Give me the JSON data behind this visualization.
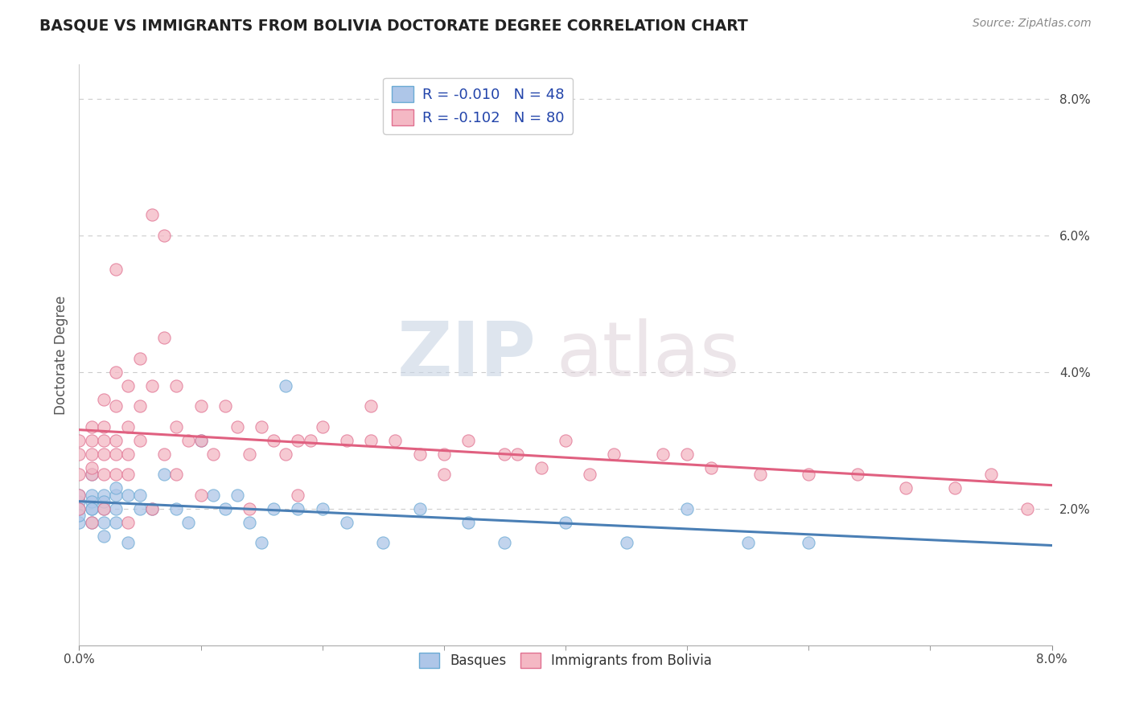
{
  "title": "BASQUE VS IMMIGRANTS FROM BOLIVIA DOCTORATE DEGREE CORRELATION CHART",
  "source": "Source: ZipAtlas.com",
  "ylabel": "Doctorate Degree",
  "legend_basque_R": "R = -0.010",
  "legend_basque_N": "N = 48",
  "legend_bolivia_R": "R = -0.102",
  "legend_bolivia_N": "N = 80",
  "basque_color": "#aec6e8",
  "bolivia_color": "#f4b8c4",
  "basque_edge_color": "#6aaad4",
  "bolivia_edge_color": "#e07090",
  "basque_line_color": "#4a7fb5",
  "bolivia_line_color": "#e06080",
  "legend_text_color": "#2244aa",
  "basque_scatter_x": [
    0.0,
    0.0,
    0.0,
    0.0,
    0.0,
    0.001,
    0.001,
    0.001,
    0.001,
    0.001,
    0.001,
    0.002,
    0.002,
    0.002,
    0.002,
    0.002,
    0.003,
    0.003,
    0.003,
    0.003,
    0.004,
    0.004,
    0.005,
    0.005,
    0.006,
    0.007,
    0.008,
    0.009,
    0.01,
    0.011,
    0.012,
    0.013,
    0.014,
    0.015,
    0.016,
    0.017,
    0.018,
    0.02,
    0.022,
    0.025,
    0.028,
    0.032,
    0.035,
    0.04,
    0.045,
    0.05,
    0.055,
    0.06
  ],
  "basque_scatter_y": [
    0.018,
    0.021,
    0.022,
    0.02,
    0.019,
    0.025,
    0.02,
    0.018,
    0.022,
    0.021,
    0.02,
    0.022,
    0.018,
    0.02,
    0.016,
    0.021,
    0.022,
    0.018,
    0.02,
    0.023,
    0.022,
    0.015,
    0.02,
    0.022,
    0.02,
    0.025,
    0.02,
    0.018,
    0.03,
    0.022,
    0.02,
    0.022,
    0.018,
    0.015,
    0.02,
    0.038,
    0.02,
    0.02,
    0.018,
    0.015,
    0.02,
    0.018,
    0.015,
    0.018,
    0.015,
    0.02,
    0.015,
    0.015
  ],
  "bolivia_scatter_x": [
    0.0,
    0.0,
    0.0,
    0.0,
    0.001,
    0.001,
    0.001,
    0.001,
    0.001,
    0.002,
    0.002,
    0.002,
    0.002,
    0.002,
    0.003,
    0.003,
    0.003,
    0.003,
    0.003,
    0.004,
    0.004,
    0.004,
    0.004,
    0.005,
    0.005,
    0.005,
    0.006,
    0.006,
    0.007,
    0.007,
    0.008,
    0.008,
    0.009,
    0.01,
    0.01,
    0.011,
    0.012,
    0.013,
    0.014,
    0.015,
    0.016,
    0.017,
    0.018,
    0.019,
    0.02,
    0.022,
    0.024,
    0.026,
    0.028,
    0.03,
    0.032,
    0.035,
    0.038,
    0.04,
    0.044,
    0.048,
    0.052,
    0.056,
    0.06,
    0.064,
    0.068,
    0.072,
    0.075,
    0.078,
    0.05,
    0.042,
    0.036,
    0.03,
    0.024,
    0.018,
    0.014,
    0.01,
    0.008,
    0.006,
    0.004,
    0.002,
    0.001,
    0.0,
    0.003,
    0.007
  ],
  "bolivia_scatter_y": [
    0.028,
    0.025,
    0.022,
    0.03,
    0.032,
    0.028,
    0.025,
    0.03,
    0.026,
    0.036,
    0.032,
    0.028,
    0.025,
    0.03,
    0.04,
    0.035,
    0.03,
    0.028,
    0.025,
    0.038,
    0.032,
    0.028,
    0.025,
    0.042,
    0.035,
    0.03,
    0.063,
    0.038,
    0.045,
    0.028,
    0.038,
    0.032,
    0.03,
    0.035,
    0.03,
    0.028,
    0.035,
    0.032,
    0.028,
    0.032,
    0.03,
    0.028,
    0.03,
    0.03,
    0.032,
    0.03,
    0.035,
    0.03,
    0.028,
    0.028,
    0.03,
    0.028,
    0.026,
    0.03,
    0.028,
    0.028,
    0.026,
    0.025,
    0.025,
    0.025,
    0.023,
    0.023,
    0.025,
    0.02,
    0.028,
    0.025,
    0.028,
    0.025,
    0.03,
    0.022,
    0.02,
    0.022,
    0.025,
    0.02,
    0.018,
    0.02,
    0.018,
    0.02,
    0.055,
    0.06
  ],
  "xlim": [
    0.0,
    0.08
  ],
  "ylim": [
    0.0,
    0.085
  ],
  "basque_R": -0.01,
  "bolivia_R": -0.102
}
